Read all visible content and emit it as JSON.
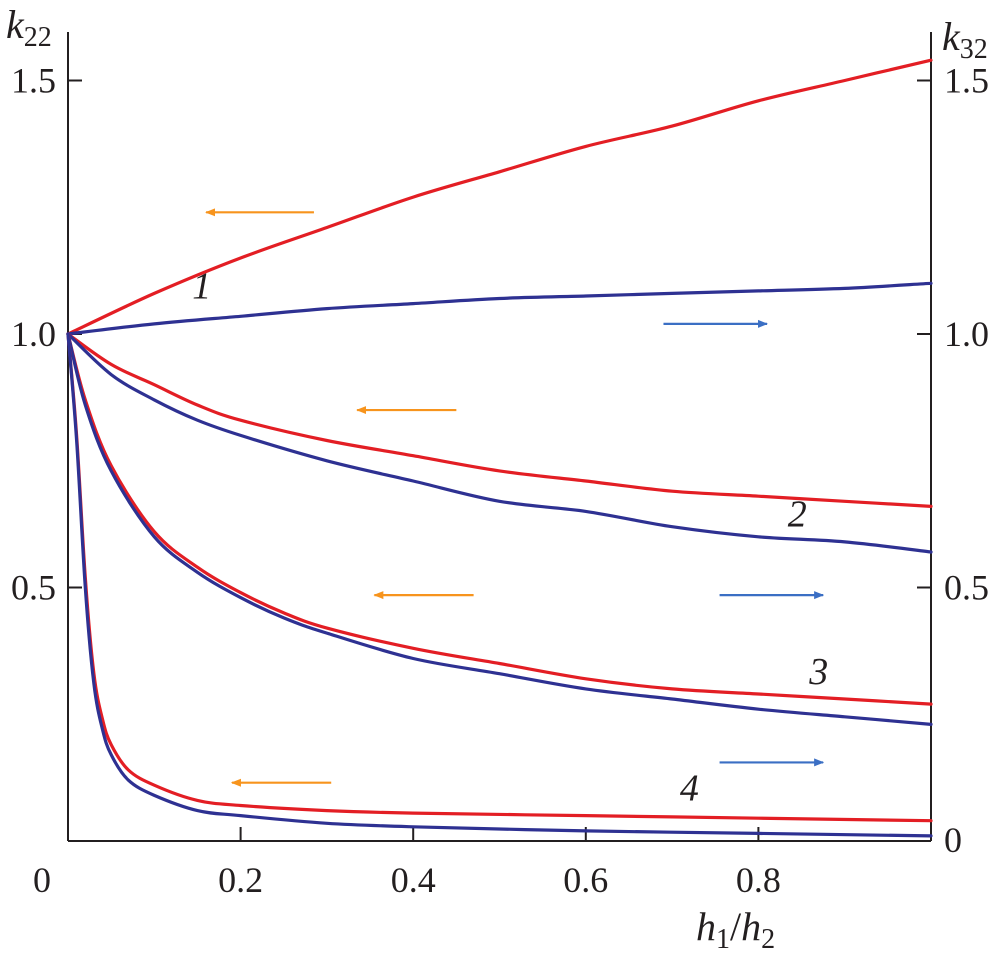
{
  "chart_data": {
    "type": "line",
    "title": "",
    "xlabel": {
      "var": "h",
      "sub1": "1",
      "slash": "/",
      "var2": "h",
      "sub2": "2"
    },
    "ylabel_left": {
      "var": "k",
      "sub": "22"
    },
    "ylabel_right": {
      "var": "k",
      "sub": "32"
    },
    "xlim": [
      0,
      1.0
    ],
    "ylim": [
      0,
      1.6
    ],
    "x_ticks": [
      {
        "value": 0,
        "label": "0"
      },
      {
        "value": 0.2,
        "label": "0.2"
      },
      {
        "value": 0.4,
        "label": "0.4"
      },
      {
        "value": 0.6,
        "label": "0.6"
      },
      {
        "value": 0.8,
        "label": "0.8"
      }
    ],
    "y_ticks_left": [
      {
        "value": 0.5,
        "label": "0.5"
      },
      {
        "value": 1.0,
        "label": "1.0"
      },
      {
        "value": 1.5,
        "label": "1.5"
      }
    ],
    "y_ticks_right": [
      {
        "value": 0,
        "label": "0"
      },
      {
        "value": 0.5,
        "label": "0.5"
      },
      {
        "value": 1.0,
        "label": "1.0"
      },
      {
        "value": 1.5,
        "label": "1.5"
      }
    ],
    "grid": false,
    "colors": {
      "red": "#e31e24",
      "blue": "#2e3192",
      "arrow_orange": "#f7941d",
      "arrow_blue": "#3b6fc4",
      "axis": "#231f20"
    },
    "series": [
      {
        "color": "red",
        "axis": "left",
        "x": [
          0,
          0.1,
          0.2,
          0.3,
          0.4,
          0.5,
          0.6,
          0.7,
          0.8,
          0.9,
          1.0
        ],
        "y": [
          1.0,
          1.08,
          1.15,
          1.21,
          1.27,
          1.32,
          1.37,
          1.41,
          1.46,
          1.5,
          1.54
        ]
      },
      {
        "color": "blue",
        "axis": "right",
        "x": [
          0,
          0.1,
          0.2,
          0.3,
          0.4,
          0.5,
          0.6,
          0.7,
          0.8,
          0.9,
          1.0
        ],
        "y": [
          1.0,
          1.02,
          1.035,
          1.05,
          1.06,
          1.07,
          1.075,
          1.08,
          1.085,
          1.09,
          1.1
        ]
      },
      {
        "color": "red",
        "axis": "left",
        "x": [
          0,
          0.05,
          0.1,
          0.15,
          0.2,
          0.3,
          0.4,
          0.5,
          0.6,
          0.7,
          0.8,
          0.9,
          1.0
        ],
        "y": [
          1.0,
          0.94,
          0.9,
          0.86,
          0.83,
          0.79,
          0.76,
          0.73,
          0.71,
          0.69,
          0.68,
          0.67,
          0.66
        ]
      },
      {
        "color": "blue",
        "axis": "right",
        "x": [
          0,
          0.05,
          0.1,
          0.15,
          0.2,
          0.3,
          0.4,
          0.5,
          0.6,
          0.7,
          0.8,
          0.9,
          1.0
        ],
        "y": [
          1.0,
          0.92,
          0.87,
          0.83,
          0.8,
          0.75,
          0.71,
          0.67,
          0.65,
          0.62,
          0.6,
          0.59,
          0.57
        ]
      },
      {
        "color": "red",
        "axis": "left",
        "x": [
          0,
          0.02,
          0.05,
          0.1,
          0.15,
          0.2,
          0.25,
          0.3,
          0.4,
          0.5,
          0.6,
          0.7,
          0.8,
          0.9,
          1.0
        ],
        "y": [
          1.0,
          0.87,
          0.74,
          0.61,
          0.54,
          0.49,
          0.45,
          0.42,
          0.38,
          0.35,
          0.32,
          0.3,
          0.29,
          0.28,
          0.27
        ]
      },
      {
        "color": "blue",
        "axis": "right",
        "x": [
          0,
          0.02,
          0.05,
          0.1,
          0.15,
          0.2,
          0.25,
          0.3,
          0.4,
          0.5,
          0.6,
          0.7,
          0.8,
          0.9,
          1.0
        ],
        "y": [
          1.0,
          0.86,
          0.73,
          0.6,
          0.53,
          0.48,
          0.44,
          0.41,
          0.36,
          0.33,
          0.3,
          0.28,
          0.26,
          0.245,
          0.23
        ]
      },
      {
        "color": "red",
        "axis": "left",
        "x": [
          0,
          0.01,
          0.02,
          0.03,
          0.04,
          0.05,
          0.07,
          0.1,
          0.15,
          0.2,
          0.3,
          0.4,
          0.6,
          0.8,
          1.0
        ],
        "y": [
          1.0,
          0.8,
          0.52,
          0.33,
          0.24,
          0.19,
          0.14,
          0.11,
          0.08,
          0.07,
          0.06,
          0.055,
          0.05,
          0.045,
          0.04
        ]
      },
      {
        "color": "blue",
        "axis": "right",
        "x": [
          0,
          0.01,
          0.02,
          0.03,
          0.04,
          0.05,
          0.07,
          0.1,
          0.15,
          0.2,
          0.3,
          0.4,
          0.6,
          0.8,
          1.0
        ],
        "y": [
          1.0,
          0.79,
          0.5,
          0.31,
          0.22,
          0.17,
          0.12,
          0.09,
          0.06,
          0.05,
          0.035,
          0.028,
          0.02,
          0.015,
          0.01
        ]
      }
    ],
    "curve_labels": [
      {
        "text": "1",
        "x": 0.155,
        "y": 1.07
      },
      {
        "text": "2",
        "x": 0.845,
        "y": 0.62
      },
      {
        "text": "3",
        "x": 0.87,
        "y": 0.31
      },
      {
        "text": "4",
        "x": 0.72,
        "y": 0.08
      }
    ],
    "arrows": [
      {
        "direction": "left",
        "color": "arrow_orange",
        "x_from": 0.285,
        "x_to": 0.16,
        "y": 1.24
      },
      {
        "direction": "right",
        "color": "arrow_blue",
        "x_from": 0.69,
        "x_to": 0.81,
        "y": 1.02
      },
      {
        "direction": "left",
        "color": "arrow_orange",
        "x_from": 0.45,
        "x_to": 0.335,
        "y": 0.85
      },
      {
        "direction": "right",
        "color": "arrow_blue",
        "x_from": 0.755,
        "x_to": 0.875,
        "y": 0.485
      },
      {
        "direction": "left",
        "color": "arrow_orange",
        "x_from": 0.47,
        "x_to": 0.355,
        "y": 0.485
      },
      {
        "direction": "right",
        "color": "arrow_blue",
        "x_from": 0.755,
        "x_to": 0.875,
        "y": 0.155
      },
      {
        "direction": "left",
        "color": "arrow_orange",
        "x_from": 0.305,
        "x_to": 0.19,
        "y": 0.115
      }
    ]
  }
}
